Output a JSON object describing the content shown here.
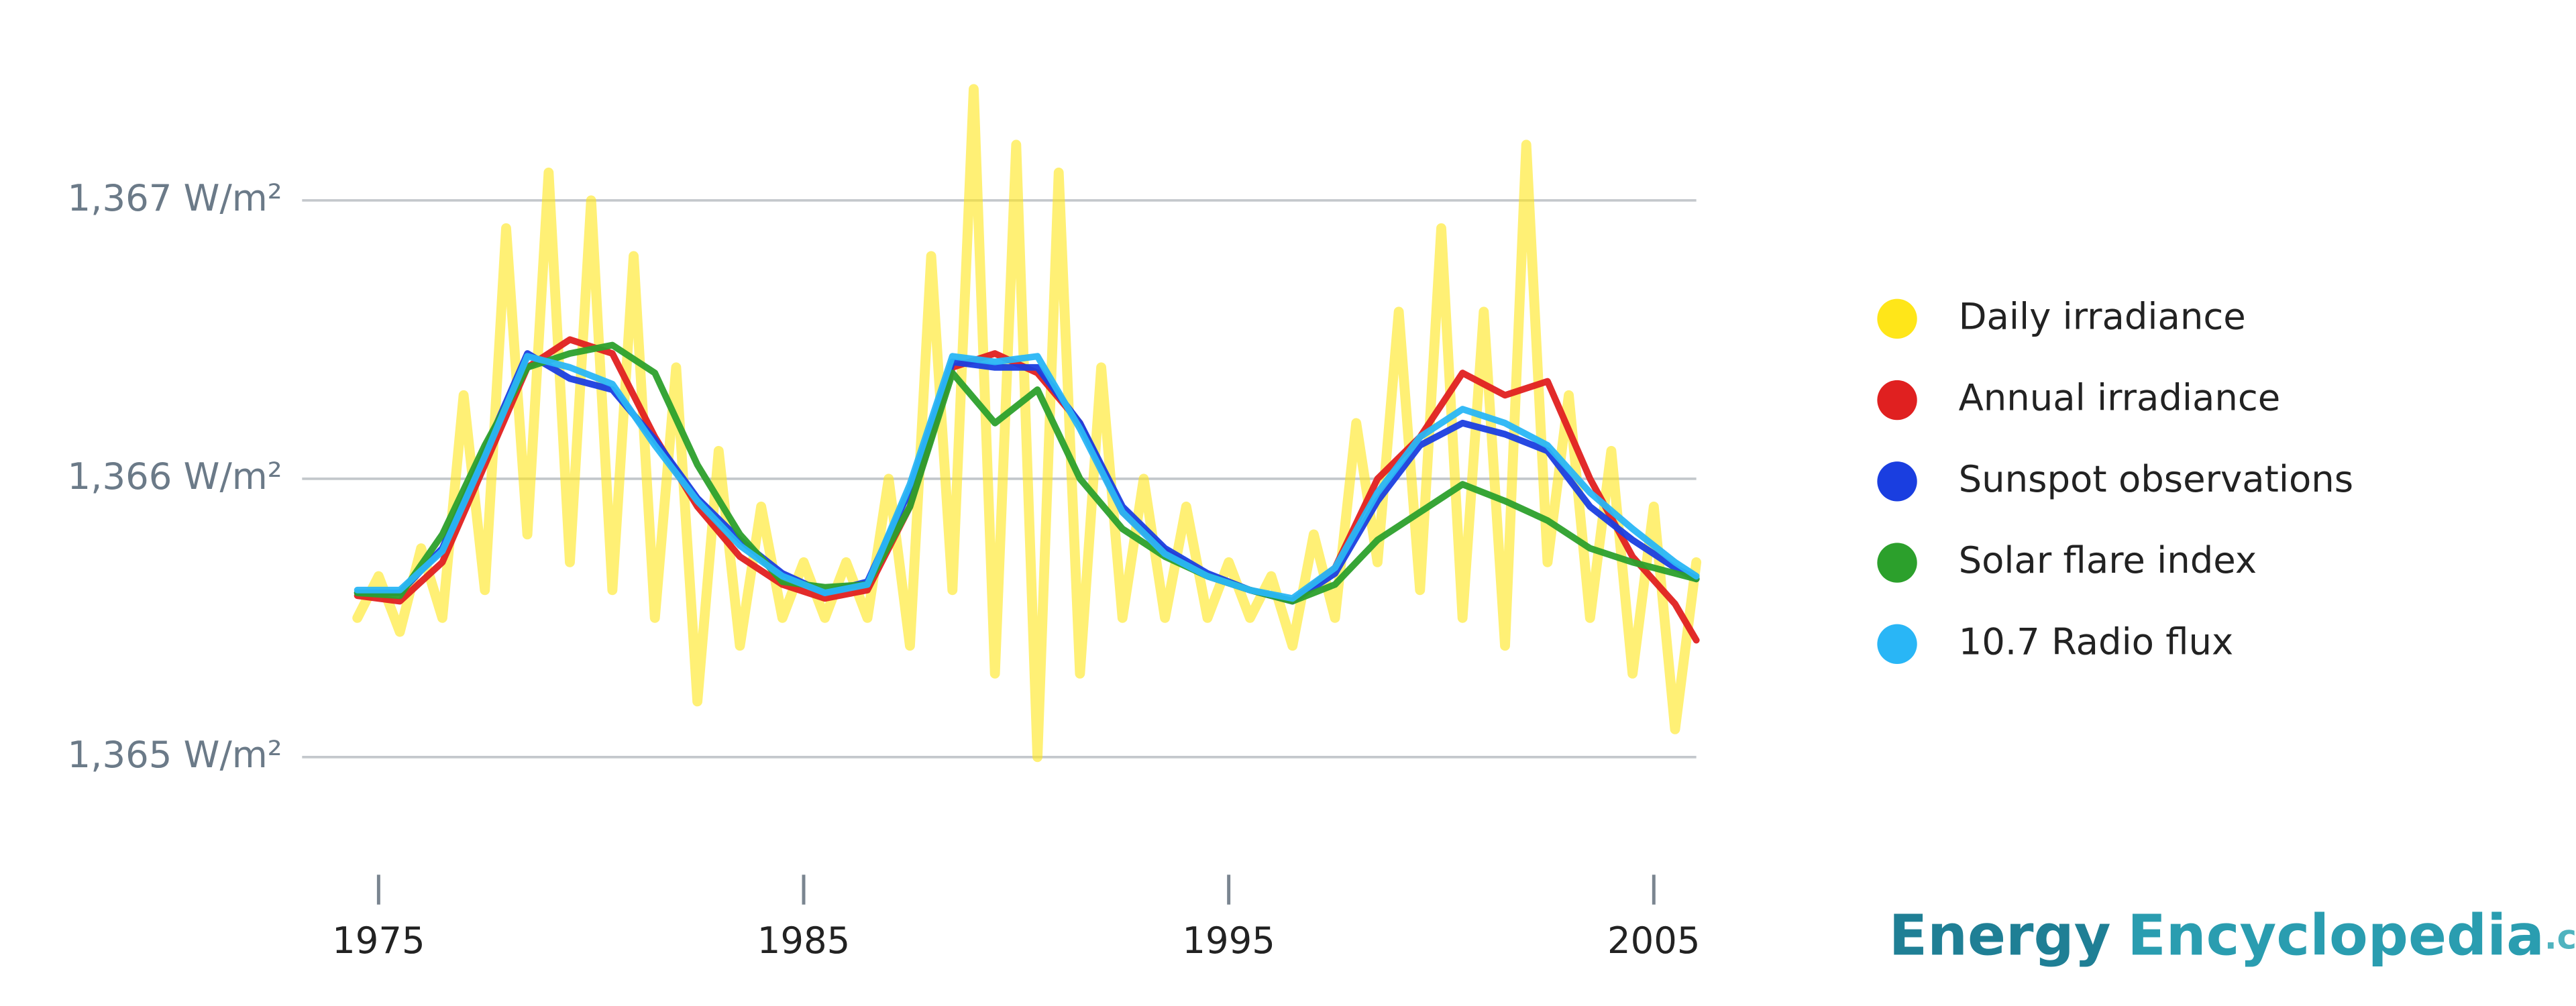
{
  "chart_data": {
    "type": "line",
    "xlim": [
      1973.2,
      2006
    ],
    "ylim": [
      1364.5,
      1367.6
    ],
    "xticks": [
      1975,
      1985,
      1995,
      2005
    ],
    "yticks": [
      {
        "value": 1365,
        "label": "1,365 W/m²"
      },
      {
        "value": 1366,
        "label": "1,366 W/m²"
      },
      {
        "value": 1367,
        "label": "1,367 W/m²"
      }
    ],
    "grid": true,
    "legend": "right",
    "x": [
      1974.5,
      1975.5,
      1976.5,
      1977.5,
      1978.5,
      1979.5,
      1980.5,
      1981.5,
      1982.5,
      1983.5,
      1984.5,
      1985.5,
      1986.5,
      1987.5,
      1988.5,
      1989.5,
      1990.5,
      1991.5,
      1992.5,
      1993.5,
      1994.5,
      1995.5,
      1996.5,
      1997.5,
      1998.5,
      1999.5,
      2000.5,
      2001.5,
      2002.5,
      2003.5,
      2004.5,
      2005.5,
      2006
    ],
    "series": [
      {
        "name": "Daily irradiance",
        "color": "#ffe619",
        "x": [
          1974.5,
          1975,
          1975.5,
          1976,
          1976.5,
          1977,
          1977.5,
          1978,
          1978.5,
          1979,
          1979.5,
          1980,
          1980.5,
          1981,
          1981.5,
          1982,
          1982.5,
          1983,
          1983.5,
          1984,
          1984.5,
          1985,
          1985.5,
          1986,
          1986.5,
          1987,
          1987.5,
          1988,
          1988.5,
          1989,
          1989.5,
          1990,
          1990.5,
          1991,
          1991.5,
          1992,
          1992.5,
          1993,
          1993.5,
          1994,
          1994.5,
          1995,
          1995.5,
          1996,
          1996.5,
          1997,
          1997.5,
          1998,
          1998.5,
          1999,
          1999.5,
          2000,
          2000.5,
          2001,
          2001.5,
          2002,
          2002.5,
          2003,
          2003.5,
          2004,
          2004.5,
          2005,
          2005.5,
          2006
        ],
        "values": [
          1365.5,
          1365.65,
          1365.45,
          1365.75,
          1365.5,
          1366.3,
          1365.6,
          1366.9,
          1365.8,
          1367.1,
          1365.7,
          1367.0,
          1365.6,
          1366.8,
          1365.5,
          1366.4,
          1365.2,
          1366.1,
          1365.4,
          1365.9,
          1365.5,
          1365.7,
          1365.5,
          1365.7,
          1365.5,
          1366.0,
          1365.4,
          1366.8,
          1365.6,
          1367.4,
          1365.3,
          1367.2,
          1365.0,
          1367.1,
          1365.3,
          1366.4,
          1365.5,
          1366.0,
          1365.5,
          1365.9,
          1365.5,
          1365.7,
          1365.5,
          1365.65,
          1365.4,
          1365.8,
          1365.5,
          1366.2,
          1365.7,
          1366.6,
          1365.6,
          1366.9,
          1365.5,
          1366.6,
          1365.4,
          1367.2,
          1365.7,
          1366.3,
          1365.5,
          1366.1,
          1365.3,
          1365.9,
          1365.1,
          1365.7
        ]
      },
      {
        "name": "Annual irradiance",
        "color": "#e02020",
        "values": [
          1365.58,
          1365.56,
          1365.7,
          1366.05,
          1366.4,
          1366.5,
          1366.45,
          1366.15,
          1365.9,
          1365.72,
          1365.62,
          1365.57,
          1365.6,
          1365.9,
          1366.4,
          1366.45,
          1366.38,
          1366.2,
          1365.88,
          1365.74,
          1365.65,
          1365.6,
          1365.56,
          1365.68,
          1366.0,
          1366.15,
          1366.38,
          1366.3,
          1366.35,
          1366.0,
          1365.72,
          1365.55,
          1365.42
        ]
      },
      {
        "name": "Sunspot observations",
        "color": "#1a3ee0",
        "values": [
          1365.59,
          1365.59,
          1365.75,
          1366.1,
          1366.45,
          1366.36,
          1366.32,
          1366.14,
          1365.93,
          1365.78,
          1365.66,
          1365.59,
          1365.63,
          1365.96,
          1366.42,
          1366.4,
          1366.4,
          1366.2,
          1365.9,
          1365.75,
          1365.66,
          1365.6,
          1365.56,
          1365.66,
          1365.92,
          1366.12,
          1366.2,
          1366.16,
          1366.1,
          1365.9,
          1365.78,
          1365.68,
          1365.64
        ]
      },
      {
        "name": "Solar flare index",
        "color": "#2ca02c",
        "values": [
          1365.59,
          1365.58,
          1365.8,
          1366.12,
          1366.4,
          1366.45,
          1366.48,
          1366.38,
          1366.05,
          1365.8,
          1365.63,
          1365.61,
          1365.62,
          1365.9,
          1366.38,
          1366.2,
          1366.32,
          1366.0,
          1365.82,
          1365.72,
          1365.65,
          1365.6,
          1365.56,
          1365.62,
          1365.78,
          1365.88,
          1365.98,
          1365.92,
          1365.85,
          1365.75,
          1365.7,
          1365.66,
          1365.64
        ]
      },
      {
        "name": "10.7 Radio flux",
        "color": "#29b6f6",
        "values": [
          1365.6,
          1365.6,
          1365.74,
          1366.08,
          1366.44,
          1366.4,
          1366.34,
          1366.12,
          1365.92,
          1365.76,
          1365.65,
          1365.59,
          1365.62,
          1365.98,
          1366.44,
          1366.42,
          1366.44,
          1366.18,
          1365.88,
          1365.73,
          1365.65,
          1365.6,
          1365.57,
          1365.68,
          1365.95,
          1366.15,
          1366.25,
          1366.2,
          1366.12,
          1365.95,
          1365.82,
          1365.7,
          1365.65
        ]
      }
    ]
  },
  "brand": {
    "first": "Energy",
    "second": "Encyclopedia",
    "suffix": ".com"
  }
}
